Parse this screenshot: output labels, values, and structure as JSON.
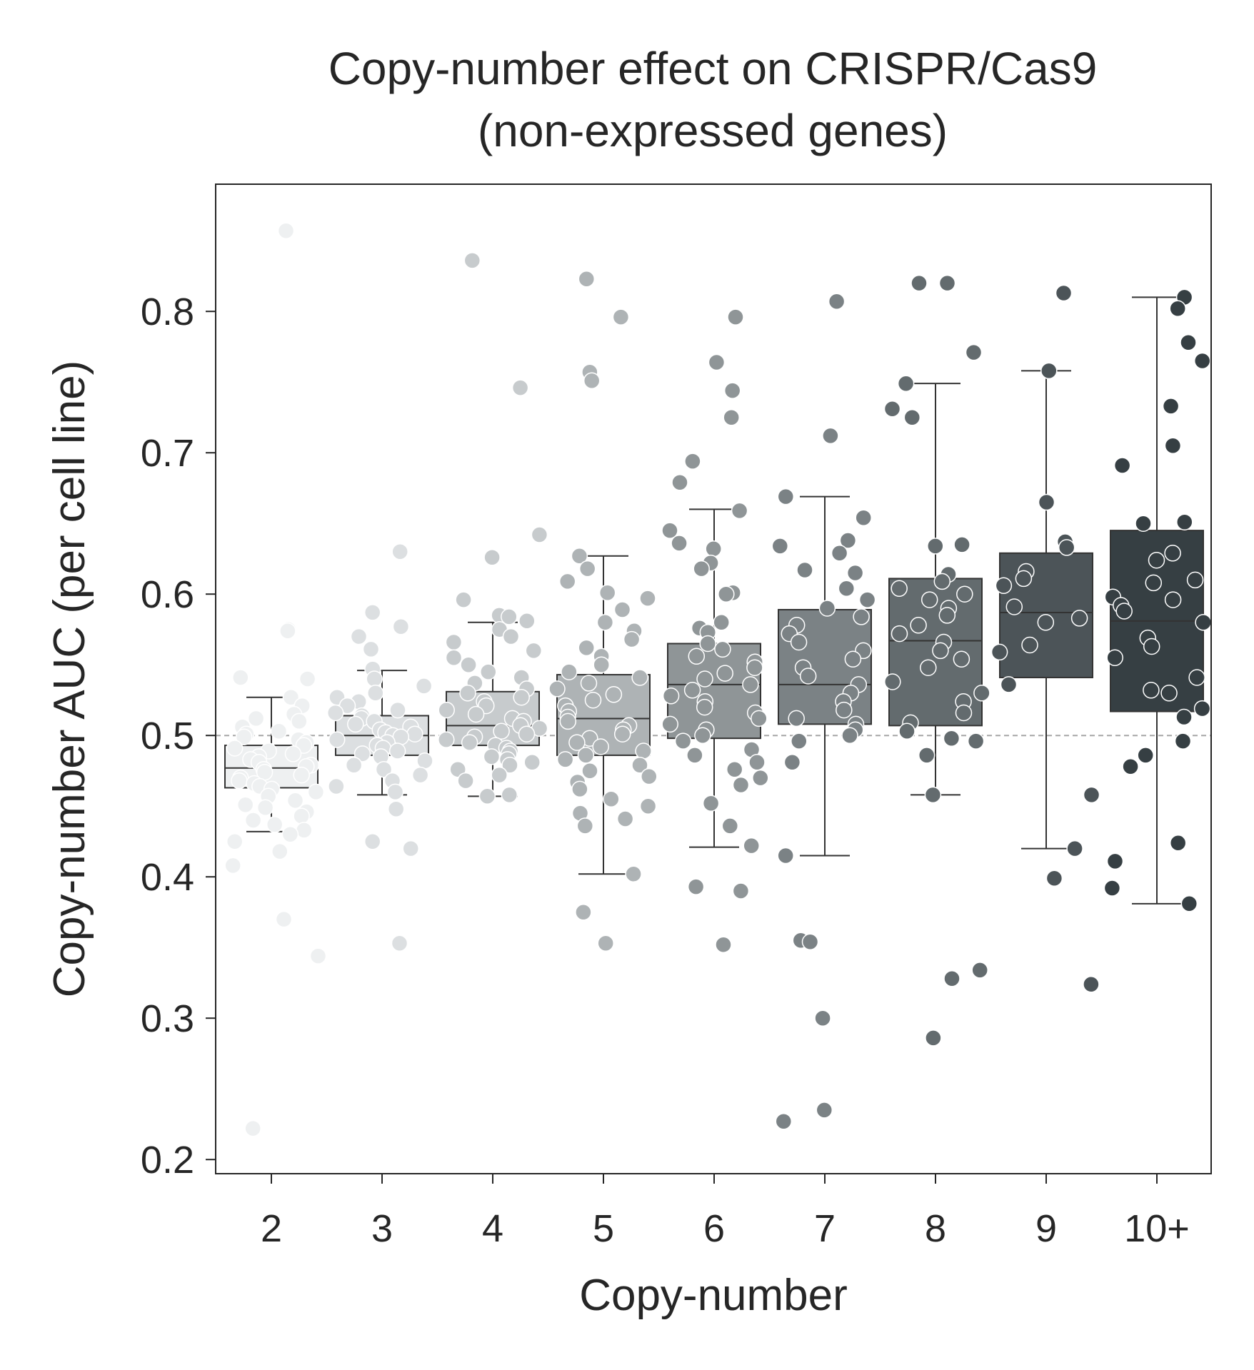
{
  "chart_data": {
    "type": "box+strip",
    "title": [
      "Copy-number effect on CRISPR/Cas9",
      "(non-expressed genes)"
    ],
    "xlabel": "Copy-number",
    "ylabel": "Copy-number AUC (per cell line)",
    "categories": [
      "2",
      "3",
      "4",
      "5",
      "6",
      "7",
      "8",
      "9",
      "10+"
    ],
    "ylim": [
      0.19,
      0.89
    ],
    "yticks": [
      0.2,
      0.3,
      0.4,
      0.5,
      0.6,
      0.7,
      0.8
    ],
    "ytick_labels": [
      "0.2",
      "0.3",
      "0.4",
      "0.5",
      "0.6",
      "0.7",
      "0.8"
    ],
    "reference_line": 0.5,
    "colors": [
      "#eef0f1",
      "#dcdfe1",
      "#c7cbcd",
      "#aeb3b5",
      "#8f9597",
      "#7b8285",
      "#636b6e",
      "#4c5458",
      "#363f43"
    ],
    "grid": false,
    "legend": "none",
    "boxes": [
      {
        "category": "2",
        "whisker_low": 0.432,
        "q1": 0.463,
        "median": 0.477,
        "q3": 0.493,
        "whisker_high": 0.527
      },
      {
        "category": "3",
        "whisker_low": 0.458,
        "q1": 0.486,
        "median": 0.5,
        "q3": 0.514,
        "whisker_high": 0.546
      },
      {
        "category": "4",
        "whisker_low": 0.457,
        "q1": 0.493,
        "median": 0.507,
        "q3": 0.531,
        "whisker_high": 0.58
      },
      {
        "category": "5",
        "whisker_low": 0.402,
        "q1": 0.486,
        "median": 0.512,
        "q3": 0.543,
        "whisker_high": 0.627
      },
      {
        "category": "6",
        "whisker_low": 0.421,
        "q1": 0.498,
        "median": 0.536,
        "q3": 0.565,
        "whisker_high": 0.66
      },
      {
        "category": "7",
        "whisker_low": 0.415,
        "q1": 0.508,
        "median": 0.536,
        "q3": 0.589,
        "whisker_high": 0.669
      },
      {
        "category": "8",
        "whisker_low": 0.458,
        "q1": 0.507,
        "median": 0.567,
        "q3": 0.611,
        "whisker_high": 0.749
      },
      {
        "category": "9",
        "whisker_low": 0.42,
        "q1": 0.541,
        "median": 0.587,
        "q3": 0.629,
        "whisker_high": 0.758
      },
      {
        "category": "10+",
        "whisker_low": 0.381,
        "q1": 0.517,
        "median": 0.581,
        "q3": 0.645,
        "whisker_high": 0.81
      }
    ],
    "points": [
      {
        "category": "2",
        "values": [
          0.857,
          0.222,
          0.37,
          0.344,
          0.575,
          0.574,
          0.541,
          0.54,
          0.527,
          0.521,
          0.515,
          0.512,
          0.51,
          0.506,
          0.503,
          0.501,
          0.499,
          0.497,
          0.495,
          0.493,
          0.491,
          0.489,
          0.487,
          0.485,
          0.483,
          0.481,
          0.479,
          0.478,
          0.476,
          0.474,
          0.472,
          0.47,
          0.468,
          0.466,
          0.464,
          0.462,
          0.46,
          0.457,
          0.454,
          0.451,
          0.449,
          0.446,
          0.443,
          0.44,
          0.437,
          0.433,
          0.43,
          0.425,
          0.418,
          0.408
        ]
      },
      {
        "category": "3",
        "values": [
          0.63,
          0.587,
          0.577,
          0.57,
          0.561,
          0.547,
          0.54,
          0.535,
          0.53,
          0.527,
          0.524,
          0.521,
          0.518,
          0.516,
          0.514,
          0.512,
          0.51,
          0.508,
          0.506,
          0.504,
          0.502,
          0.501,
          0.5,
          0.499,
          0.497,
          0.495,
          0.493,
          0.491,
          0.489,
          0.487,
          0.485,
          0.482,
          0.479,
          0.476,
          0.472,
          0.468,
          0.464,
          0.46,
          0.448,
          0.425,
          0.42,
          0.353
        ]
      },
      {
        "category": "4",
        "values": [
          0.836,
          0.746,
          0.642,
          0.626,
          0.596,
          0.585,
          0.584,
          0.581,
          0.575,
          0.57,
          0.566,
          0.56,
          0.555,
          0.55,
          0.545,
          0.541,
          0.537,
          0.533,
          0.53,
          0.527,
          0.524,
          0.521,
          0.518,
          0.515,
          0.512,
          0.51,
          0.507,
          0.505,
          0.503,
          0.501,
          0.499,
          0.497,
          0.495,
          0.493,
          0.491,
          0.489,
          0.487,
          0.485,
          0.483,
          0.481,
          0.479,
          0.476,
          0.472,
          0.468,
          0.458,
          0.457
        ]
      },
      {
        "category": "5",
        "values": [
          0.823,
          0.796,
          0.757,
          0.751,
          0.627,
          0.618,
          0.609,
          0.601,
          0.597,
          0.589,
          0.58,
          0.574,
          0.568,
          0.562,
          0.556,
          0.55,
          0.545,
          0.541,
          0.537,
          0.533,
          0.529,
          0.525,
          0.521,
          0.517,
          0.513,
          0.51,
          0.507,
          0.504,
          0.501,
          0.498,
          0.495,
          0.492,
          0.489,
          0.486,
          0.483,
          0.479,
          0.475,
          0.471,
          0.467,
          0.462,
          0.455,
          0.45,
          0.445,
          0.441,
          0.436,
          0.402,
          0.375,
          0.353
        ]
      },
      {
        "category": "6",
        "values": [
          0.796,
          0.764,
          0.744,
          0.725,
          0.694,
          0.679,
          0.659,
          0.645,
          0.636,
          0.632,
          0.622,
          0.618,
          0.601,
          0.6,
          0.58,
          0.576,
          0.573,
          0.565,
          0.561,
          0.556,
          0.552,
          0.548,
          0.544,
          0.54,
          0.536,
          0.532,
          0.528,
          0.524,
          0.52,
          0.516,
          0.512,
          0.508,
          0.504,
          0.5,
          0.496,
          0.49,
          0.486,
          0.481,
          0.476,
          0.47,
          0.465,
          0.452,
          0.436,
          0.422,
          0.393,
          0.39,
          0.352
        ]
      },
      {
        "category": "7",
        "values": [
          0.807,
          0.712,
          0.669,
          0.654,
          0.638,
          0.634,
          0.629,
          0.617,
          0.615,
          0.604,
          0.596,
          0.59,
          0.584,
          0.578,
          0.572,
          0.566,
          0.56,
          0.554,
          0.548,
          0.542,
          0.536,
          0.53,
          0.524,
          0.518,
          0.512,
          0.508,
          0.504,
          0.5,
          0.496,
          0.481,
          0.415,
          0.355,
          0.354,
          0.3,
          0.235,
          0.227
        ]
      },
      {
        "category": "8",
        "values": [
          0.82,
          0.82,
          0.771,
          0.749,
          0.731,
          0.725,
          0.635,
          0.634,
          0.614,
          0.609,
          0.604,
          0.6,
          0.596,
          0.59,
          0.585,
          0.578,
          0.572,
          0.566,
          0.56,
          0.554,
          0.548,
          0.538,
          0.53,
          0.524,
          0.516,
          0.509,
          0.503,
          0.498,
          0.496,
          0.486,
          0.458,
          0.334,
          0.328,
          0.286
        ]
      },
      {
        "category": "9",
        "values": [
          0.813,
          0.758,
          0.665,
          0.637,
          0.633,
          0.616,
          0.611,
          0.606,
          0.591,
          0.583,
          0.58,
          0.564,
          0.559,
          0.536,
          0.458,
          0.42,
          0.399,
          0.324
        ]
      },
      {
        "category": "10+",
        "values": [
          0.81,
          0.802,
          0.778,
          0.765,
          0.733,
          0.705,
          0.691,
          0.651,
          0.65,
          0.629,
          0.624,
          0.61,
          0.608,
          0.598,
          0.596,
          0.592,
          0.588,
          0.58,
          0.569,
          0.563,
          0.555,
          0.541,
          0.532,
          0.53,
          0.519,
          0.513,
          0.496,
          0.486,
          0.478,
          0.424,
          0.411,
          0.392,
          0.381
        ]
      }
    ]
  }
}
